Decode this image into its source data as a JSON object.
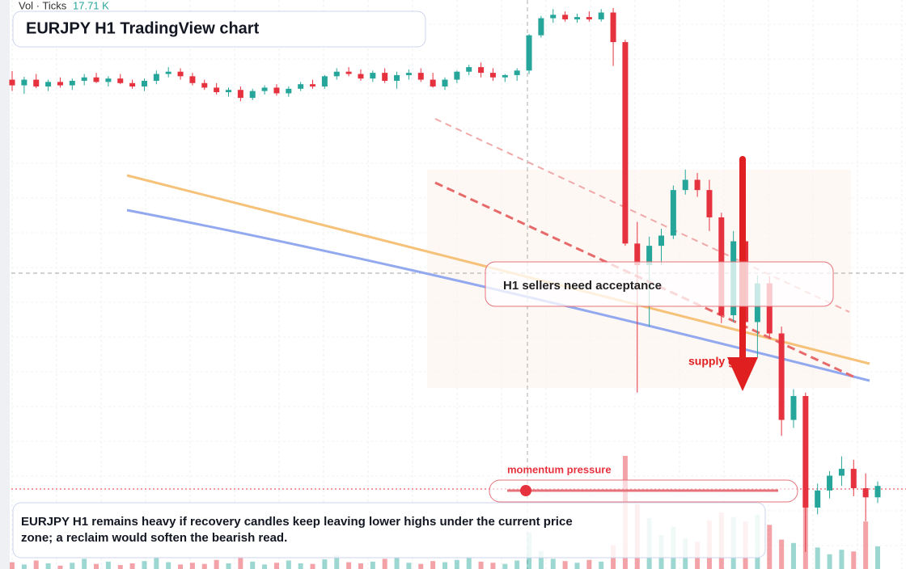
{
  "chart_data": {
    "type": "candlestick",
    "title": "EURJPY H1 TradingView chart",
    "volume_label": "Vol · Ticks",
    "volume_value": "17.71 K",
    "annotations": {
      "box": "H1 sellers need acceptance",
      "zone": "supply gate",
      "momentum": "momentum pressure",
      "summary": "EURJPY H1 remains heavy if recovery candles keep leaving lower highs under the current price zone; a reclaim would soften the bearish read."
    },
    "up_color": "#26a69a",
    "down_color": "#e5323e",
    "ylim": [
      0,
      100
    ],
    "vlim": [
      0,
      20
    ],
    "candles": [
      [
        86,
        87.5,
        84,
        85
      ],
      [
        85,
        86.5,
        83.5,
        86
      ],
      [
        86,
        87,
        84.5,
        84.8
      ],
      [
        84.8,
        86,
        84,
        85.6
      ],
      [
        85.6,
        86.4,
        84.6,
        85
      ],
      [
        85,
        86.2,
        84.2,
        85.8
      ],
      [
        85.8,
        87,
        85,
        86.4
      ],
      [
        86.4,
        87.2,
        85.4,
        85.6
      ],
      [
        85.6,
        86.6,
        84.8,
        86.2
      ],
      [
        86.2,
        87,
        85.2,
        85.4
      ],
      [
        85.4,
        86,
        84.4,
        84.8
      ],
      [
        84.8,
        86.2,
        84,
        85.8
      ],
      [
        85.8,
        87.6,
        85.2,
        87
      ],
      [
        87,
        88.2,
        86.4,
        87.4
      ],
      [
        87.4,
        88,
        86,
        86.6
      ],
      [
        86.6,
        87.2,
        85,
        85.4
      ],
      [
        85.4,
        86,
        84.2,
        84.6
      ],
      [
        84.6,
        85.4,
        83.4,
        83.8
      ],
      [
        83.8,
        84.6,
        83,
        84.2
      ],
      [
        84.2,
        84.8,
        82.2,
        82.8
      ],
      [
        82.8,
        84.4,
        82.4,
        84
      ],
      [
        84,
        85,
        83.4,
        84.6
      ],
      [
        84.6,
        85.2,
        83.2,
        83.6
      ],
      [
        83.6,
        84.8,
        83,
        84.4
      ],
      [
        84.4,
        85.6,
        84,
        85.2
      ],
      [
        85.2,
        86,
        84.4,
        84.8
      ],
      [
        84.8,
        86.8,
        84.4,
        86.6
      ],
      [
        86.6,
        88,
        86,
        87.4
      ],
      [
        87.4,
        88.2,
        86.6,
        87
      ],
      [
        87,
        87.8,
        85.8,
        86.2
      ],
      [
        86.2,
        87.6,
        85.6,
        87.2
      ],
      [
        87.2,
        88,
        85.4,
        85.8
      ],
      [
        85.8,
        87.4,
        84.4,
        86.8
      ],
      [
        86.8,
        87.8,
        86,
        87.2
      ],
      [
        87.2,
        88,
        85.6,
        86
      ],
      [
        86,
        87.2,
        84.6,
        84.8
      ],
      [
        84.8,
        86.4,
        84.2,
        86
      ],
      [
        86,
        87.6,
        85.4,
        87.4
      ],
      [
        87.4,
        88.6,
        86.8,
        88.2
      ],
      [
        88.2,
        89,
        86.4,
        87.2
      ],
      [
        87.2,
        88,
        85.8,
        86.4
      ],
      [
        86.4,
        87,
        85.6,
        86.8
      ],
      [
        86.8,
        88,
        85.8,
        87.6
      ],
      [
        87.6,
        94,
        87,
        93.8
      ],
      [
        93.8,
        97.2,
        93.4,
        96.8
      ],
      [
        96.8,
        98.4,
        96,
        97.4
      ],
      [
        97.4,
        98,
        96.2,
        96.6
      ],
      [
        96.6,
        97.6,
        96,
        97
      ],
      [
        97,
        98,
        96.2,
        96.6
      ],
      [
        96.6,
        98.4,
        96.2,
        97.8
      ],
      [
        97.8,
        98.6,
        88.4,
        92.6
      ],
      [
        92.6,
        93,
        56.8,
        57.2
      ],
      [
        57.2,
        61,
        31,
        53.4
      ],
      [
        53.4,
        58.4,
        42.6,
        56.8
      ],
      [
        56.8,
        59.8,
        53.4,
        58.6
      ],
      [
        58.6,
        67.4,
        58,
        66.6
      ],
      [
        66.6,
        70.2,
        65.8,
        68.4
      ],
      [
        68.4,
        69.6,
        65.4,
        66.6
      ],
      [
        66.6,
        68.4,
        59.4,
        61.8
      ],
      [
        61.8,
        62.6,
        43.2,
        44.6
      ],
      [
        44.6,
        59.4,
        43.4,
        57.6
      ],
      [
        57.6,
        58.6,
        40.8,
        43.4
      ],
      [
        43.4,
        51.6,
        37.2,
        50.2
      ],
      [
        50.2,
        51.4,
        40.6,
        41.4
      ],
      [
        41.4,
        42.6,
        23.4,
        26.2
      ],
      [
        26.2,
        31.6,
        24.8,
        30.4
      ],
      [
        30.4,
        31,
        3,
        10.8
      ],
      [
        10.8,
        15,
        9.6,
        13.8
      ],
      [
        13.8,
        17.2,
        12.4,
        16.4
      ],
      [
        16.4,
        19.8,
        14.6,
        17.6
      ],
      [
        17.6,
        19.2,
        12.8,
        14.2
      ],
      [
        14.2,
        16.8,
        8.4,
        12.6
      ],
      [
        12.6,
        15.4,
        11.6,
        14.6
      ]
    ],
    "volume": [
      1.2,
      0.8,
      1.5,
      1,
      0.6,
      1.1,
      1.8,
      0.9,
      1.3,
      0.7,
      1,
      1.4,
      2,
      1.2,
      0.8,
      1.1,
      0.9,
      1.6,
      1,
      2.2,
      1.3,
      0.8,
      1.1,
      1.5,
      1,
      0.9,
      1.7,
      2.4,
      1.2,
      1,
      1.3,
      1.8,
      2.1,
      1.1,
      0.9,
      1.4,
      1.2,
      1.6,
      2,
      1.3,
      1.1,
      0.9,
      1.5,
      6.5,
      3.2,
      1.8,
      1.4,
      1.1,
      1.6,
      1.3,
      4.2,
      20,
      11.5,
      9,
      6,
      7.5,
      5.4,
      4.8,
      8.6,
      10,
      9.2,
      8.4,
      9.6,
      7.8,
      5.2,
      4.6,
      14,
      3.8,
      2.6,
      3.4,
      3.1,
      8.4,
      4
    ]
  }
}
